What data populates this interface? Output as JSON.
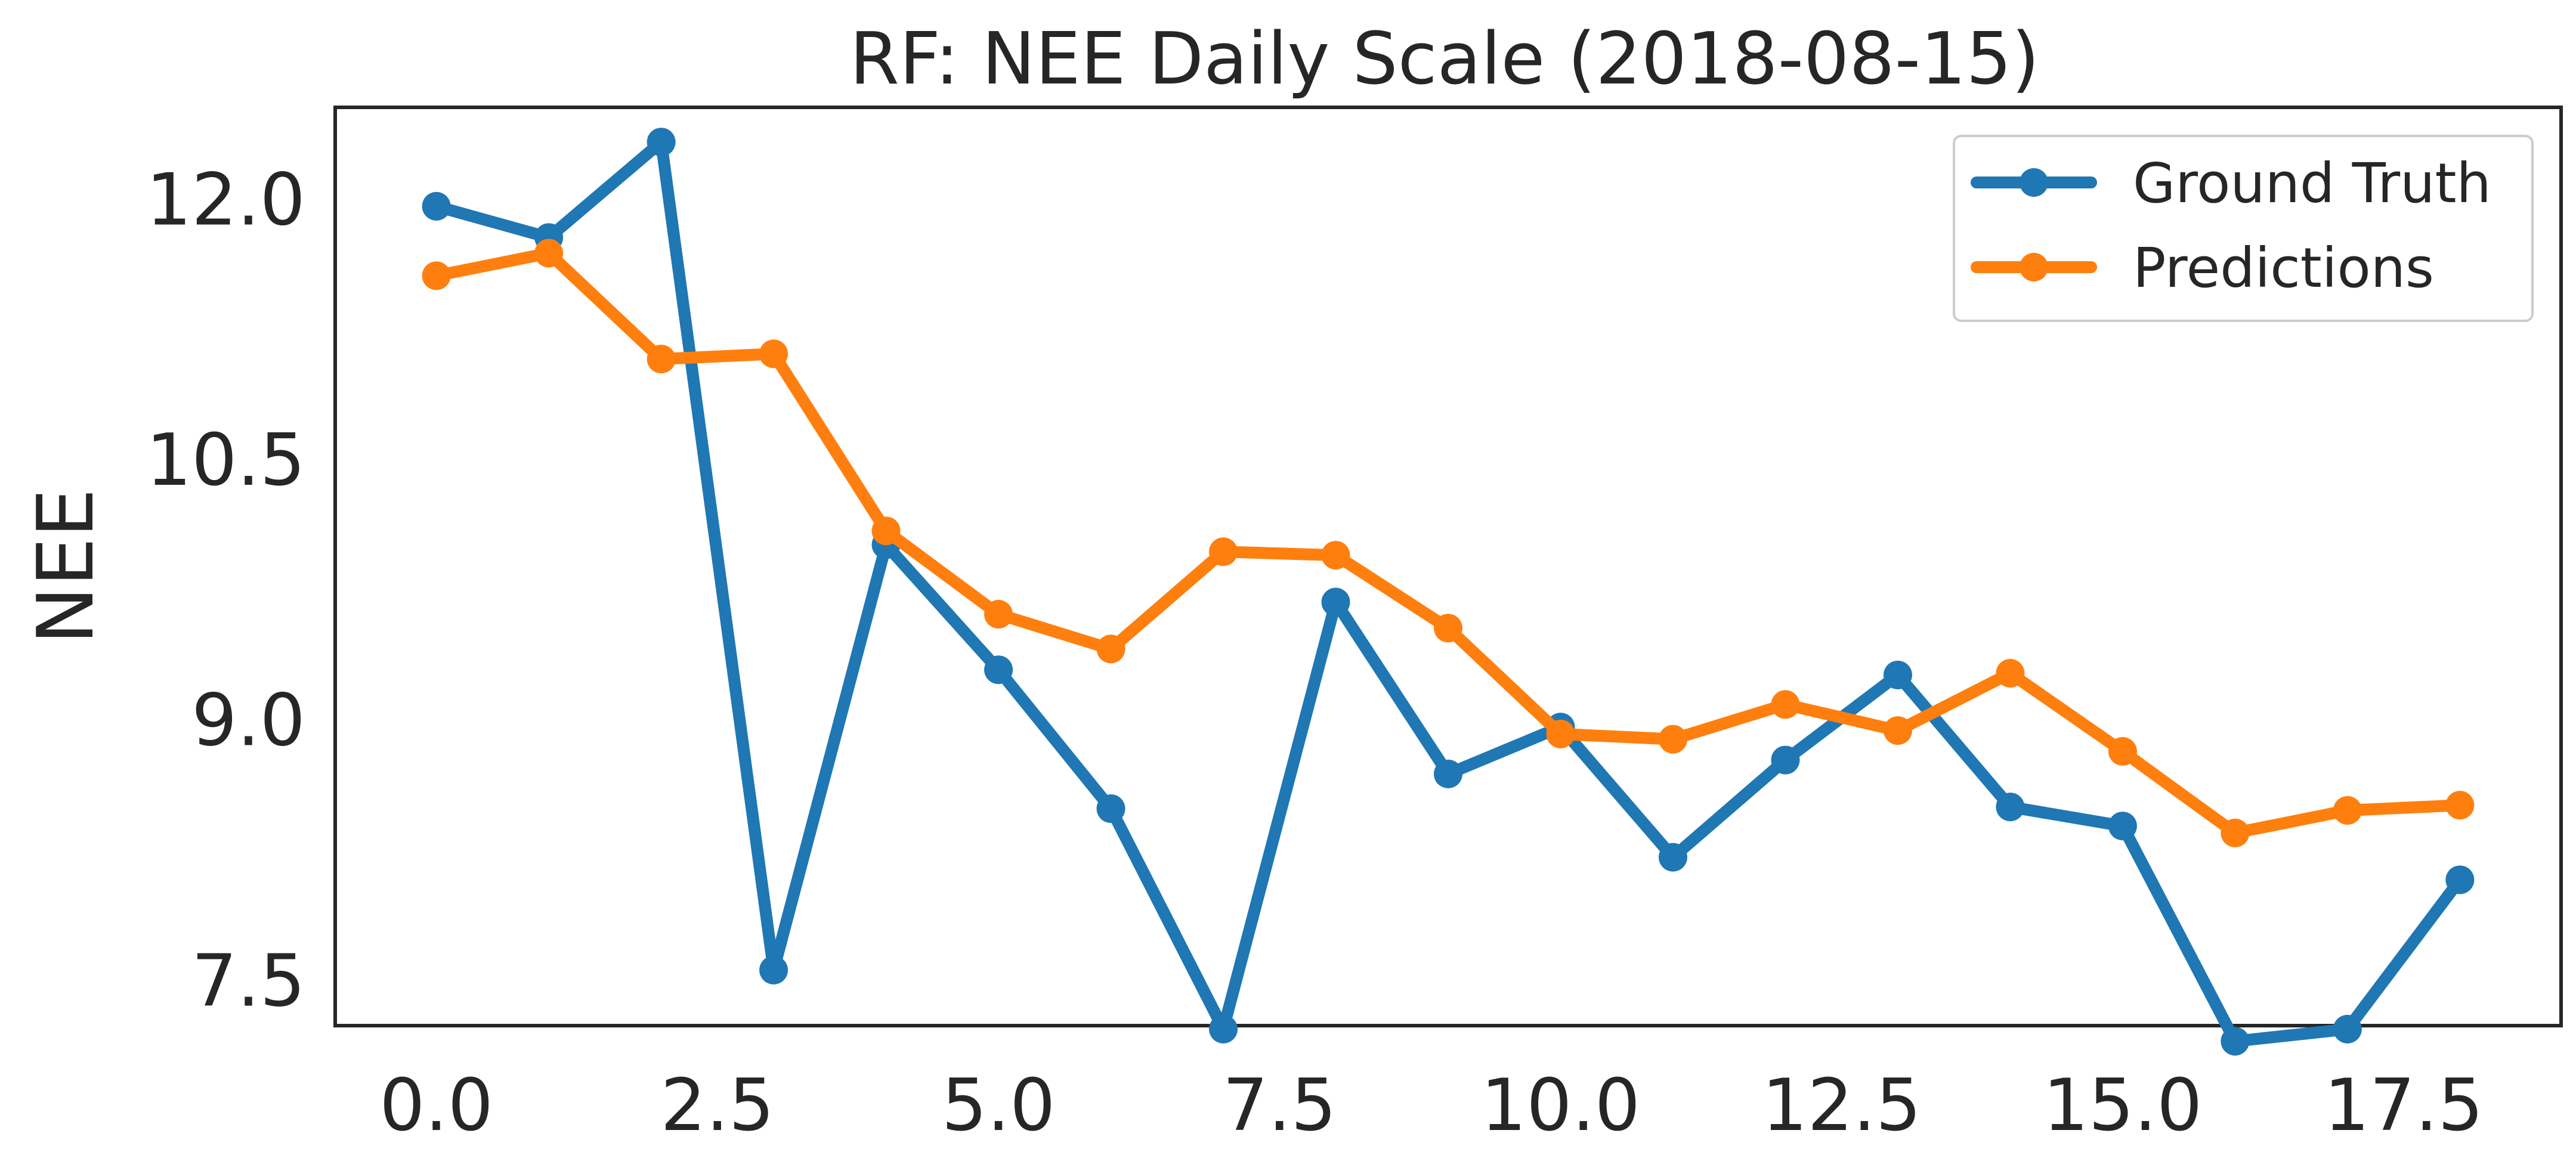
{
  "chart_data": {
    "type": "line",
    "title": "RF: NEE Daily Scale (2018-08-15)",
    "xlabel": "",
    "ylabel": "NEE",
    "x": [
      0,
      1,
      2,
      3,
      4,
      5,
      6,
      7,
      8,
      9,
      10,
      11,
      12,
      13,
      14,
      15,
      16,
      17,
      18
    ],
    "x_ticks": [
      0.0,
      2.5,
      5.0,
      7.5,
      10.0,
      12.5,
      15.0,
      17.5
    ],
    "x_tick_labels": [
      "0.0",
      "2.5",
      "5.0",
      "7.5",
      "10.0",
      "12.5",
      "15.0",
      "17.5"
    ],
    "y_ticks": [
      7.5,
      9.0,
      10.5,
      12.0
    ],
    "y_tick_labels": [
      "7.5",
      "9.0",
      "10.5",
      "12.0"
    ],
    "xlim": [
      -0.9,
      18.9
    ],
    "ylim": [
      7.24,
      12.53
    ],
    "grid": false,
    "legend_position": "top-right",
    "series": [
      {
        "name": "Ground Truth",
        "color": "#1f77b4",
        "values": [
          11.96,
          11.78,
          12.33,
          7.56,
          10.01,
          9.29,
          8.49,
          7.22,
          9.68,
          8.69,
          8.96,
          8.21,
          8.77,
          9.26,
          8.5,
          8.39,
          7.15,
          7.22,
          8.08
        ]
      },
      {
        "name": "Predictions",
        "color": "#ff7f0e",
        "values": [
          11.56,
          11.69,
          11.08,
          11.11,
          10.09,
          9.61,
          9.41,
          9.97,
          9.95,
          9.53,
          8.92,
          8.89,
          9.09,
          8.94,
          9.27,
          8.82,
          8.35,
          8.48,
          8.51
        ]
      }
    ]
  }
}
